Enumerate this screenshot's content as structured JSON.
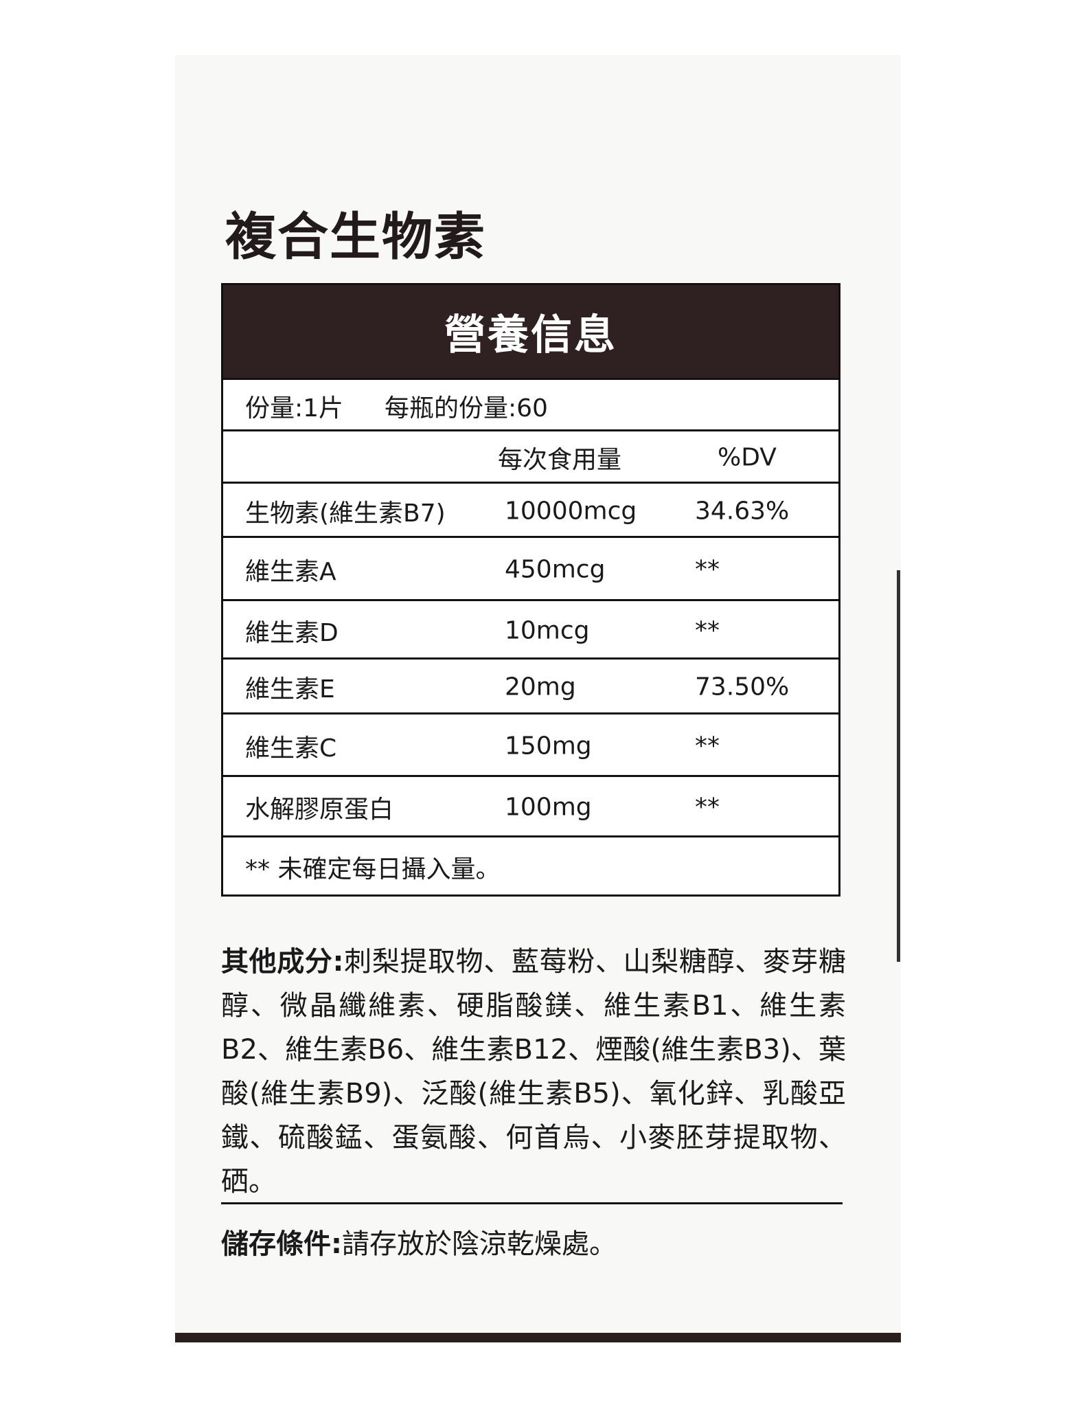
{
  "product_title": "複合生物素",
  "table": {
    "heading": "營養信息",
    "serving_size": "份量:1片",
    "servings_per_bottle": "每瓶的份量:60",
    "col_amount": "每次食用量",
    "col_dv": "%DV",
    "rows": [
      {
        "name": "生物素(維生素B7)",
        "amount": "10000mcg",
        "dv": "34.63%"
      },
      {
        "name": "維生素A",
        "amount": "450mcg",
        "dv": "**"
      },
      {
        "name": "維生素D",
        "amount": "10mcg",
        "dv": "**"
      },
      {
        "name": "維生素E",
        "amount": "20mg",
        "dv": "73.50%"
      },
      {
        "name": "維生素C",
        "amount": "150mg",
        "dv": "**"
      },
      {
        "name": "水解膠原蛋白",
        "amount": "100mg",
        "dv": "**"
      }
    ],
    "footnote": "** 未確定每日攝入量。"
  },
  "other_ingredients": {
    "label": "其他成分:",
    "text": "刺梨提取物、藍莓粉、山梨糖醇、麥芽糖醇、微晶纖維素、硬脂酸鎂、維生素B1、維生素B2、維生素B6、維生素B12、煙酸(維生素B3)、葉酸(維生素B9)、泛酸(維生素B5)、氧化鋅、乳酸亞鐵、硫酸錳、蛋氨酸、何首烏、小麥胚芽提取物、硒。"
  },
  "storage": {
    "label": "儲存條件:",
    "text": "請存放於陰涼乾燥處。"
  }
}
